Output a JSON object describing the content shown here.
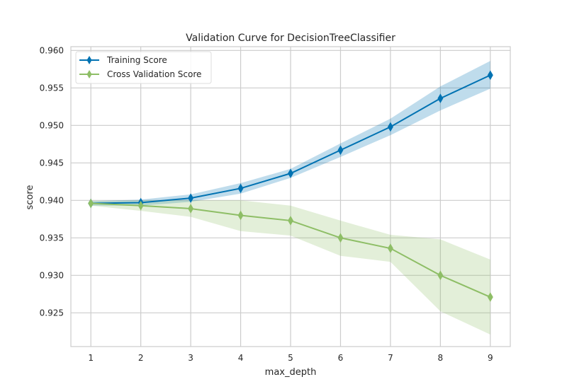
{
  "chart_data": {
    "type": "line",
    "title": "Validation Curve for DecisionTreeClassifier",
    "xlabel": "max_depth",
    "ylabel": "score",
    "x": [
      1,
      2,
      3,
      4,
      5,
      6,
      7,
      8,
      9
    ],
    "xlim": [
      0.6,
      9.4
    ],
    "ylim": [
      0.9205,
      0.9605
    ],
    "xticks": [
      "1",
      "2",
      "3",
      "4",
      "5",
      "6",
      "7",
      "8",
      "9"
    ],
    "yticks": [
      "0.925",
      "0.930",
      "0.935",
      "0.940",
      "0.945",
      "0.950",
      "0.955",
      "0.960"
    ],
    "grid": true,
    "legend_position": "top-left",
    "series": [
      {
        "name": "Training Score",
        "color": "#0072b2",
        "values": [
          0.9396,
          0.9397,
          0.9403,
          0.9416,
          0.9436,
          0.9467,
          0.9498,
          0.9536,
          0.9567
        ],
        "lower": [
          0.9393,
          0.9393,
          0.9398,
          0.9409,
          0.943,
          0.9458,
          0.9487,
          0.952,
          0.9549
        ],
        "upper": [
          0.9399,
          0.9401,
          0.9408,
          0.9423,
          0.9442,
          0.9476,
          0.9509,
          0.9552,
          0.9586
        ]
      },
      {
        "name": "Cross Validation Score",
        "color": "#8ebe66",
        "values": [
          0.9396,
          0.9393,
          0.9389,
          0.938,
          0.9373,
          0.935,
          0.9336,
          0.93,
          0.9271
        ],
        "lower": [
          0.9393,
          0.9386,
          0.9378,
          0.9359,
          0.9353,
          0.9326,
          0.9318,
          0.9252,
          0.9221
        ],
        "upper": [
          0.9399,
          0.94,
          0.94,
          0.94,
          0.9393,
          0.9373,
          0.9354,
          0.9348,
          0.9321
        ]
      }
    ]
  }
}
